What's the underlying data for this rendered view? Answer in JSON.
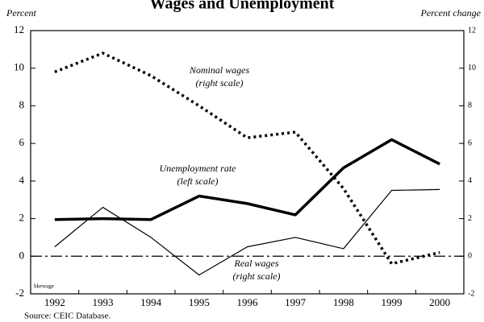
{
  "chart_data": {
    "type": "line",
    "title": "Wages and Unemployment",
    "y_label": "Percent",
    "y2_label": "Percent change",
    "categories": [
      "1992",
      "1993",
      "1994",
      "1995",
      "1996",
      "1997",
      "1998",
      "1999",
      "2000"
    ],
    "series": [
      {
        "name": "Unemployment rate",
        "color": "#000000",
        "axis": "y",
        "values": [
          1.95,
          2.0,
          1.95,
          3.2,
          2.8,
          2.2,
          4.7,
          6.2,
          4.9
        ]
      },
      {
        "name": "Nominal wages",
        "color": "#000000",
        "axis": "y2",
        "values": [
          9.8,
          10.8,
          9.6,
          8.0,
          6.3,
          6.6,
          3.6,
          -0.4,
          0.2
        ]
      },
      {
        "name": "Real wages",
        "color": "#000000",
        "axis": "y2",
        "values": [
          0.5,
          2.6,
          1.0,
          -1.0,
          0.5,
          1.0,
          0.4,
          3.5,
          3.55
        ]
      }
    ],
    "annotations": [
      "Nominal wages",
      "(right scale)",
      "Unemployment rate",
      "(left scale)",
      "Real wages",
      "(right scale)"
    ],
    "ylim": [
      -2,
      12
    ],
    "yticks": [
      -2,
      0,
      2,
      4,
      6,
      8,
      10,
      12
    ],
    "y2lim": [
      -2,
      12
    ],
    "y2ticks": [
      -2,
      0,
      2,
      4,
      6,
      8,
      10,
      12
    ],
    "note": "hkewage",
    "source": "Source: CEIC Database."
  }
}
